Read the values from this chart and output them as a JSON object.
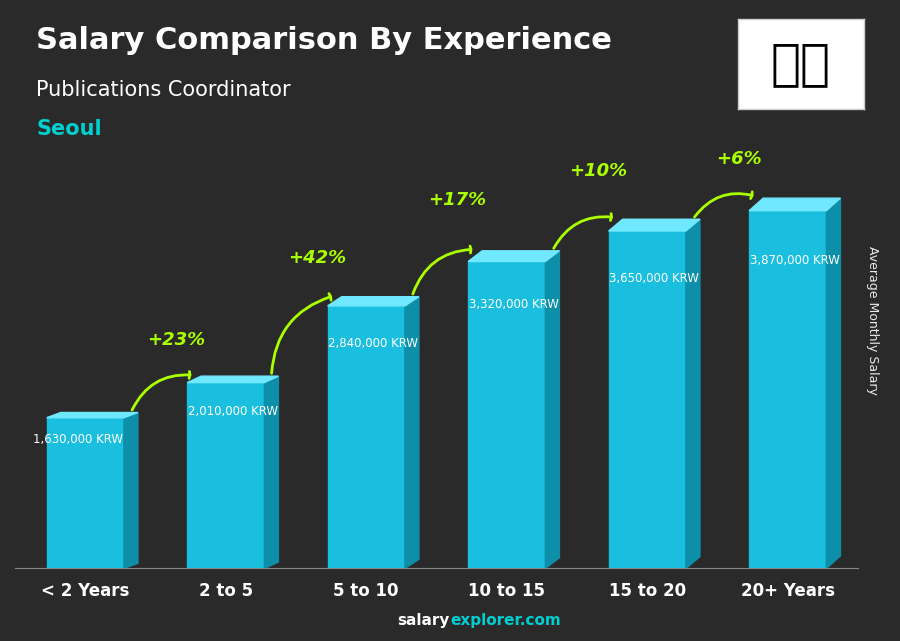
{
  "title_line1": "Salary Comparison By Experience",
  "title_line2": "Publications Coordinator",
  "city": "Seoul",
  "categories": [
    "< 2 Years",
    "2 to 5",
    "5 to 10",
    "10 to 15",
    "15 to 20",
    "20+ Years"
  ],
  "values": [
    1630000,
    2010000,
    2840000,
    3320000,
    3650000,
    3870000
  ],
  "value_labels": [
    "1,630,000 KRW",
    "2,010,000 KRW",
    "2,840,000 KRW",
    "3,320,000 KRW",
    "3,650,000 KRW",
    "3,870,000 KRW"
  ],
  "pct_labels": [
    "+23%",
    "+42%",
    "+17%",
    "+10%",
    "+6%"
  ],
  "bar_color_face": "#00BFFF",
  "bar_color_dark": "#0080B0",
  "bar_color_top": "#40D0FF",
  "bg_color": "#1a1a2e",
  "title_color": "#FFFFFF",
  "city_color": "#00CFCF",
  "pct_color": "#AAFF00",
  "value_color": "#FFFFFF",
  "xlabel_color": "#FFFFFF",
  "ylabel_text": "Average Monthly Salary",
  "footer": "salaryexplorer.com",
  "ylim_max": 4600000,
  "arrow_color": "#AAFF00"
}
